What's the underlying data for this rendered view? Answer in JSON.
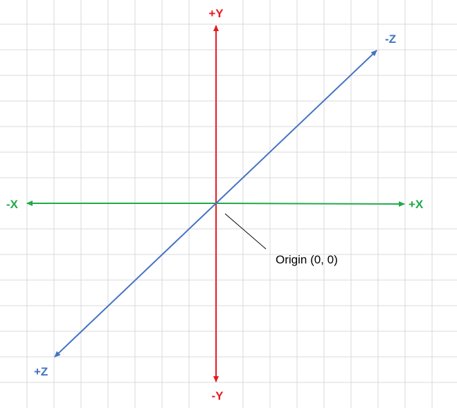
{
  "diagram": {
    "grid": true,
    "colors": {
      "grid": "#d9d9d9",
      "x_axis": "#1faa4a",
      "y_axis": "#e8191f",
      "z_axis": "#4472c4",
      "callout": "#000000"
    },
    "labels": {
      "pos_y": "+Y",
      "neg_y": "-Y",
      "pos_x": "+X",
      "neg_x": "-X",
      "pos_z": "+Z",
      "neg_z": "-Z",
      "origin": "Origin (0, 0)"
    }
  }
}
